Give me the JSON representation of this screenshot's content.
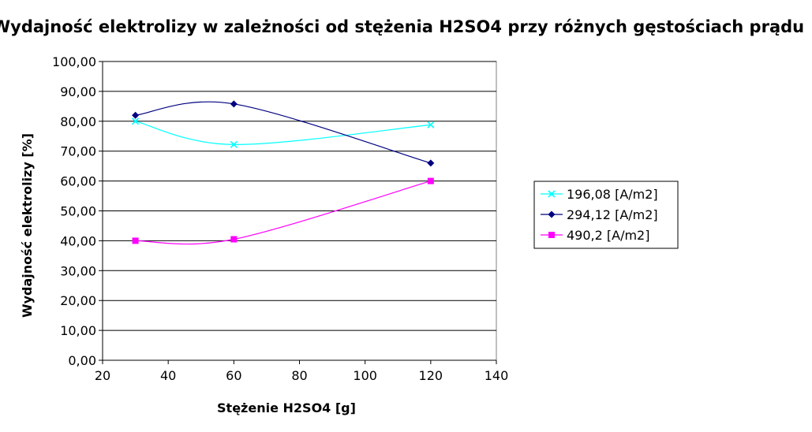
{
  "chart_data": {
    "type": "line",
    "title": "Wydajność elektrolizy w zależności od stężenia H2SO4 przy różnych gęstościach prądu",
    "xlabel": "Stężenie H2SO4 [g]",
    "ylabel": "Wydajność elektrolizy [%]",
    "xlim": [
      20,
      140
    ],
    "ylim": [
      0,
      100
    ],
    "x_ticks": [
      "20",
      "40",
      "60",
      "80",
      "100",
      "120",
      "140"
    ],
    "y_ticks": [
      "0,00",
      "10,00",
      "20,00",
      "30,00",
      "40,00",
      "50,00",
      "60,00",
      "70,00",
      "80,00",
      "90,00",
      "100,00"
    ],
    "grid": "horizontal",
    "legend_position": "right",
    "series": [
      {
        "name": "196,08 [A/m2]",
        "color": "#00FFFF",
        "marker": "x",
        "x": [
          30,
          60,
          120
        ],
        "y": [
          80.0,
          72.2,
          78.8
        ]
      },
      {
        "name": "294,12 [A/m2]",
        "color": "#000080",
        "marker": "diamond",
        "x": [
          30,
          60,
          120
        ],
        "y": [
          82.0,
          85.8,
          66.0
        ]
      },
      {
        "name": "490,2 [A/m2]",
        "color": "#FF00FF",
        "marker": "square",
        "x": [
          30,
          60,
          120
        ],
        "y": [
          40.0,
          40.5,
          60.0
        ]
      }
    ]
  }
}
